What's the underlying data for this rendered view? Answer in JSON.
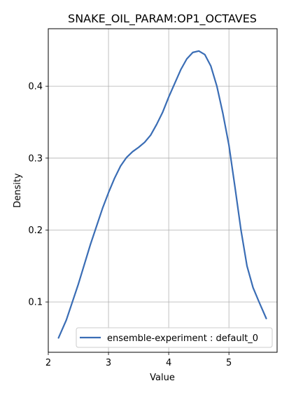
{
  "chart_data": {
    "type": "line",
    "title": "SNAKE_OIL_PARAM:OP1_OCTAVES",
    "xlabel": "Value",
    "ylabel": "Density",
    "xlim": [
      2.0,
      5.8
    ],
    "ylim": [
      0.03,
      0.48
    ],
    "xticks": [
      2,
      3,
      4,
      5
    ],
    "xtick_labels": [
      "2",
      "3",
      "4",
      "5"
    ],
    "yticks": [
      0.1,
      0.2,
      0.3,
      0.4
    ],
    "ytick_labels": [
      "0.1",
      "0.2",
      "0.3",
      "0.4"
    ],
    "grid": true,
    "legend_position": "lower-right",
    "series": [
      {
        "name": "ensemble-experiment : default_0",
        "color": "#3a6db5",
        "x": [
          2.17,
          2.3,
          2.5,
          2.7,
          2.9,
          3.0,
          3.1,
          3.2,
          3.3,
          3.4,
          3.5,
          3.6,
          3.7,
          3.8,
          3.9,
          4.0,
          4.1,
          4.2,
          4.3,
          4.4,
          4.5,
          4.6,
          4.7,
          4.8,
          4.9,
          5.0,
          5.1,
          5.2,
          5.3,
          5.4,
          5.5,
          5.62
        ],
        "y": [
          0.05,
          0.075,
          0.125,
          0.18,
          0.23,
          0.252,
          0.272,
          0.289,
          0.301,
          0.309,
          0.315,
          0.322,
          0.332,
          0.347,
          0.364,
          0.385,
          0.404,
          0.423,
          0.438,
          0.447,
          0.449,
          0.444,
          0.428,
          0.4,
          0.362,
          0.318,
          0.26,
          0.2,
          0.15,
          0.12,
          0.1,
          0.077
        ]
      }
    ]
  }
}
